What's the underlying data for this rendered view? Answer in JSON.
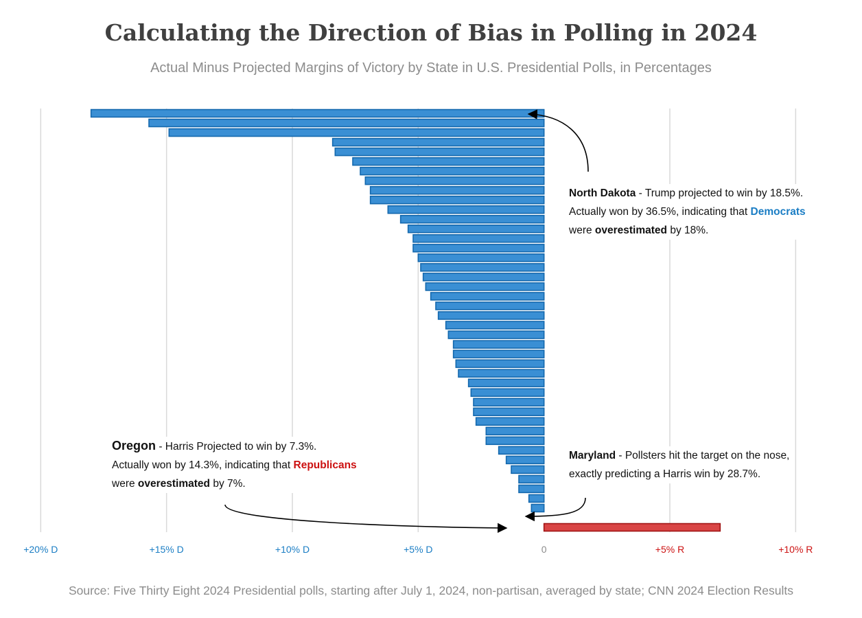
{
  "title": "Calculating the Direction of Bias in Polling in 2024",
  "subtitle": "Actual Minus Projected Margins of Victory by State in U.S. Presidential Polls, in Percentages",
  "source": "Source: Five Thirty Eight 2024 Presidential polls, starting after July 1, 2024, non-partisan, averaged by state; CNN 2024 Election Results",
  "colors": {
    "democrat": "#3a8fd4",
    "democrat_edge": "#1468ad",
    "republican": "#d94545",
    "republican_edge": "#a01414",
    "dem_text": "#1a7dc4",
    "rep_text": "#cc1111",
    "grid": "#d9d9d9"
  },
  "annotations": {
    "north_dakota": {
      "name": "North Dakota",
      "line1": " - Trump projected to win by 18.5%.",
      "line2_pre": "Actually won by 36.5%, indicating that ",
      "party": "Democrats",
      "line3_pre": "were ",
      "emph": "overestimated",
      "line3_post": " by 18%."
    },
    "maryland": {
      "name": "Maryland",
      "line1": " - Pollsters hit the target on the nose,",
      "line2": "exactly predicting a Harris win by 28.7%."
    },
    "oregon": {
      "name": "Oregon",
      "line1": " - Harris Projected to win by 7.3%.",
      "line2_pre": "Actually won by 14.3%, indicating that ",
      "party": "Republicans",
      "line3_pre": "were ",
      "emph": "overestimated",
      "line3_post": " by 7%."
    }
  },
  "chart_data": {
    "type": "bar",
    "orientation": "horizontal",
    "sign_convention": "negative = bias toward D (Democrats overestimated), positive = bias toward R (Republicans overestimated)",
    "values": [
      -18.0,
      -15.7,
      -14.9,
      -8.4,
      -8.3,
      -7.6,
      -7.3,
      -7.1,
      -6.9,
      -6.9,
      -6.2,
      -5.7,
      -5.4,
      -5.2,
      -5.2,
      -5.0,
      -4.9,
      -4.8,
      -4.7,
      -4.5,
      -4.3,
      -4.2,
      -3.9,
      -3.8,
      -3.6,
      -3.6,
      -3.5,
      -3.4,
      -3.0,
      -2.9,
      -2.8,
      -2.8,
      -2.7,
      -2.3,
      -2.3,
      -1.8,
      -1.5,
      -1.3,
      -1.0,
      -1.0,
      -0.6,
      -0.5,
      0.0,
      7.0
    ],
    "xlim": [
      -20.8,
      11.0
    ],
    "xticks": [
      -20,
      -15,
      -10,
      -5,
      0,
      5,
      10
    ],
    "xtick_labels": [
      "+20% D",
      "+15% D",
      "+10% D",
      "+5% D",
      "0",
      "+5% R",
      "+10% R"
    ],
    "grid": "vertical",
    "title": "Calculating the Direction of Bias in Polling in 2024",
    "xlabel": "",
    "ylabel": ""
  }
}
